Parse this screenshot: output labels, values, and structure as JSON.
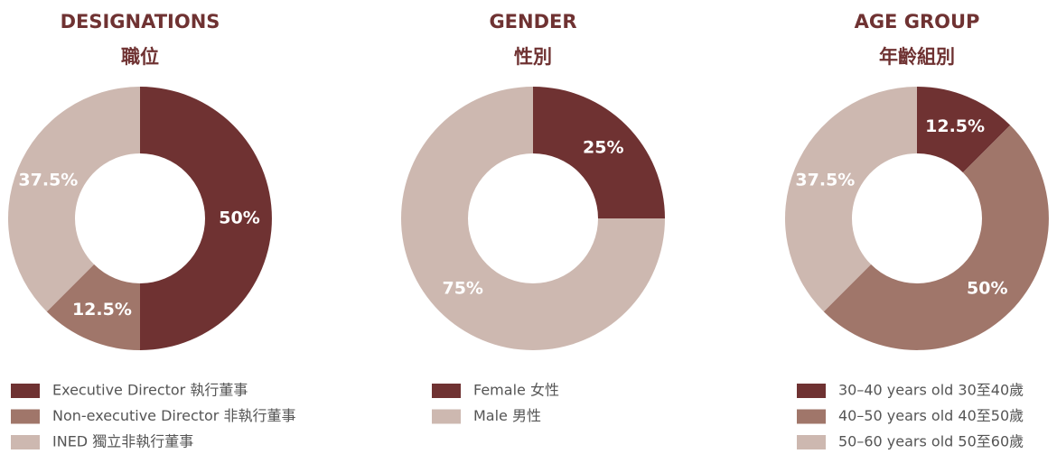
{
  "chart_data": [
    {
      "type": "pie",
      "title": "DESIGNATIONS",
      "subtitle": "職位",
      "categories": [
        "Executive Director 執行董事",
        "Non-executive Director 非執行董事",
        "INED 獨立非執行董事"
      ],
      "values": [
        50,
        12.5,
        37.5
      ],
      "value_labels": [
        "50%",
        "12.5%",
        "37.5%"
      ],
      "colors": [
        "#6f3232",
        "#a0766a",
        "#cdb8b0"
      ]
    },
    {
      "type": "pie",
      "title": "GENDER",
      "subtitle": "性別",
      "categories": [
        "Female 女性",
        "Male 男性"
      ],
      "values": [
        25,
        75
      ],
      "value_labels": [
        "25%",
        "75%"
      ],
      "colors": [
        "#6f3232",
        "#cdb8b0"
      ]
    },
    {
      "type": "pie",
      "title": "AGE GROUP",
      "subtitle": "年齡組別",
      "categories": [
        "30–40 years old 30至40歲",
        "40–50 years old 40至50歲",
        "50–60 years old 50至60歲"
      ],
      "values": [
        12.5,
        50,
        37.5
      ],
      "value_labels": [
        "12.5%",
        "50%",
        "37.5%"
      ],
      "colors": [
        "#6f3232",
        "#a0766a",
        "#cdb8b0"
      ]
    }
  ]
}
